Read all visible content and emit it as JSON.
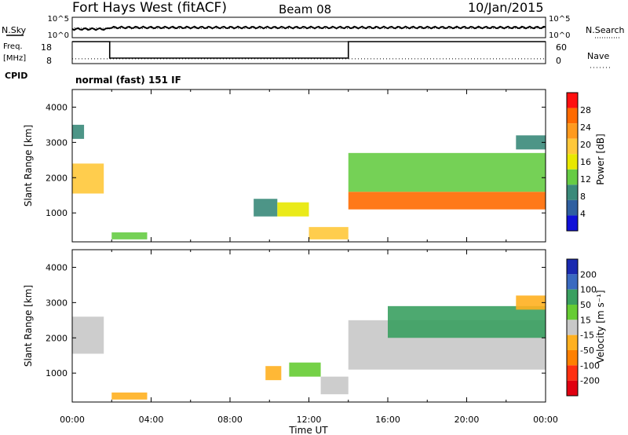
{
  "header": {
    "station": "Fort Hays West (fitACF)",
    "beam": "Beam 08",
    "date": "10/Jan/2015"
  },
  "strip": {
    "nsky_label": "N.Sky",
    "nsky_ticks": [
      "10^5",
      "10^0"
    ],
    "nsearch_label": "N.Search",
    "nsearch_ticks": [
      "10^5",
      "10^0"
    ],
    "freq_label": "Freq.",
    "freq_unit": "[MHz]",
    "freq_ticks": [
      "18",
      "8"
    ],
    "nave_label": "Nave",
    "nave_ticks": [
      "60",
      "0"
    ],
    "cpid_label": "CPID",
    "cpid_text": "normal (fast) 151 IF"
  },
  "power_colorbar": {
    "label": "Power [dB]",
    "ticks": [
      "28",
      "24",
      "20",
      "16",
      "12",
      "8",
      "4"
    ],
    "colors": [
      "#ff1010",
      "#ff6a00",
      "#ff9a1e",
      "#ffc83a",
      "#e8e800",
      "#66cc44",
      "#3a8a7a",
      "#2f5fa0",
      "#1010d8"
    ]
  },
  "velocity_colorbar": {
    "label": "Velocity [m s⁻¹]",
    "ticks": [
      "200",
      "100",
      "50",
      "15",
      "-15",
      "-50",
      "-100",
      "-200"
    ],
    "colors": [
      "#1a2ab0",
      "#3a6ac0",
      "#3aa060",
      "#66cc33",
      "#c8c8c8",
      "#ffb020",
      "#ff8000",
      "#ff3010",
      "#e00010"
    ]
  },
  "chart_data": [
    {
      "type": "line",
      "title": "Freq. / Nave",
      "xlabel": "Time UT",
      "xlim": [
        0,
        24
      ],
      "series": [
        {
          "name": "Freq.",
          "x": [
            0,
            1.9,
            1.9,
            14.0,
            14.0,
            24
          ],
          "y": [
            18,
            18,
            10.5,
            10.5,
            18,
            18
          ]
        },
        {
          "name": "Nave",
          "x": [
            0,
            24
          ],
          "y": [
            13,
            13
          ]
        }
      ]
    },
    {
      "type": "heatmap",
      "title": "Power [dB]",
      "xlabel": "Time UT",
      "ylabel": "Slant Range [km]",
      "xlim": [
        0,
        24
      ],
      "ylim": [
        180,
        4500
      ],
      "x_ticks": [
        "00:00",
        "04:00",
        "08:00",
        "12:00",
        "16:00",
        "20:00",
        "00:00"
      ],
      "y_ticks": [
        1000,
        2000,
        3000,
        4000
      ],
      "clim": [
        0,
        30
      ],
      "regions": [
        {
          "t0": 0.0,
          "t1": 1.6,
          "r0": 1550,
          "r1": 2400,
          "power": 18
        },
        {
          "t0": 0.0,
          "t1": 0.6,
          "r0": 3100,
          "r1": 3500,
          "power": 6
        },
        {
          "t0": 2.0,
          "t1": 3.8,
          "r0": 250,
          "r1": 450,
          "power": 10
        },
        {
          "t0": 9.2,
          "t1": 10.4,
          "r0": 900,
          "r1": 1400,
          "power": 8
        },
        {
          "t0": 10.4,
          "t1": 12.0,
          "r0": 900,
          "r1": 1300,
          "power": 14
        },
        {
          "t0": 12.0,
          "t1": 14.0,
          "r0": 250,
          "r1": 600,
          "power": 20
        },
        {
          "t0": 14.0,
          "t1": 24.0,
          "r0": 1100,
          "r1": 1600,
          "power": 26
        },
        {
          "t0": 14.0,
          "t1": 24.0,
          "r0": 1600,
          "r1": 2700,
          "power": 10
        },
        {
          "t0": 22.5,
          "t1": 24.0,
          "r0": 2800,
          "r1": 3200,
          "power": 6
        }
      ]
    },
    {
      "type": "heatmap",
      "title": "Velocity [m s⁻¹]",
      "xlabel": "Time UT",
      "ylabel": "Slant Range [km]",
      "xlim": [
        0,
        24
      ],
      "ylim": [
        180,
        4500
      ],
      "x_ticks": [
        "00:00",
        "04:00",
        "08:00",
        "12:00",
        "16:00",
        "20:00",
        "00:00"
      ],
      "y_ticks": [
        1000,
        2000,
        3000,
        4000
      ],
      "clim": [
        -200,
        200
      ],
      "regions": [
        {
          "t0": 0.0,
          "t1": 1.6,
          "r0": 1550,
          "r1": 2600,
          "velocity": 0
        },
        {
          "t0": 2.0,
          "t1": 3.8,
          "r0": 250,
          "r1": 450,
          "velocity": -60
        },
        {
          "t0": 9.8,
          "t1": 10.6,
          "r0": 800,
          "r1": 1200,
          "velocity": -40
        },
        {
          "t0": 11.0,
          "t1": 12.6,
          "r0": 900,
          "r1": 1300,
          "velocity": 40
        },
        {
          "t0": 12.6,
          "t1": 14.0,
          "r0": 400,
          "r1": 900,
          "velocity": 0
        },
        {
          "t0": 14.0,
          "t1": 24.0,
          "r0": 1100,
          "r1": 2500,
          "velocity": 0
        },
        {
          "t0": 16.0,
          "t1": 24.0,
          "r0": 2000,
          "r1": 2900,
          "velocity": 120
        },
        {
          "t0": 22.5,
          "t1": 24.0,
          "r0": 2800,
          "r1": 3200,
          "velocity": -50
        }
      ]
    }
  ]
}
